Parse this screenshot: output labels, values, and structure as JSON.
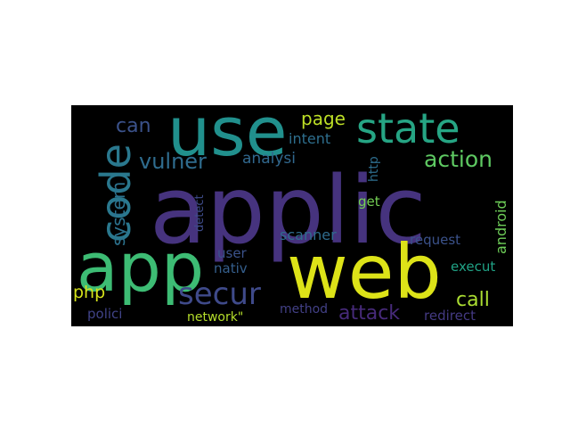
{
  "words": [
    {
      "text": "applic",
      "color": "#46337e"
    },
    {
      "text": "use",
      "color": "#21908d"
    },
    {
      "text": "web",
      "color": "#dde318"
    },
    {
      "text": "app",
      "color": "#3dbc74"
    },
    {
      "text": "state",
      "color": "#26a584"
    },
    {
      "text": "code",
      "color": "#2a788e"
    },
    {
      "text": "secur",
      "color": "#3f4a8a"
    },
    {
      "text": "vulner",
      "color": "#2f6c8e"
    },
    {
      "text": "action",
      "color": "#5ec962"
    },
    {
      "text": "attack",
      "color": "#472a7a"
    },
    {
      "text": "system",
      "color": "#2c728e"
    },
    {
      "text": "can",
      "color": "#3b528b"
    },
    {
      "text": "page",
      "color": "#bddf26"
    },
    {
      "text": "call",
      "color": "#aadc32"
    },
    {
      "text": "intent",
      "color": "#2e6f8e"
    },
    {
      "text": "analysi",
      "color": "#31688e"
    },
    {
      "text": "php",
      "color": "#d5e21a"
    },
    {
      "text": "android",
      "color": "#6ece58"
    },
    {
      "text": "user",
      "color": "#3b528b"
    },
    {
      "text": "nativ",
      "color": "#355f8d"
    },
    {
      "text": "scanner",
      "color": "#2f6c8e"
    },
    {
      "text": "request",
      "color": "#3b528b"
    },
    {
      "text": "execut",
      "color": "#20a386"
    },
    {
      "text": "get",
      "color": "#75d054"
    },
    {
      "text": "http",
      "color": "#2e6e8e"
    },
    {
      "text": "detect",
      "color": "#3e4c8a"
    },
    {
      "text": "method",
      "color": "#424086"
    },
    {
      "text": "redirect",
      "color": "#443a83"
    },
    {
      "text": "polici",
      "color": "#404387"
    },
    {
      "text": "network\"",
      "color": "#b5de2b"
    }
  ]
}
